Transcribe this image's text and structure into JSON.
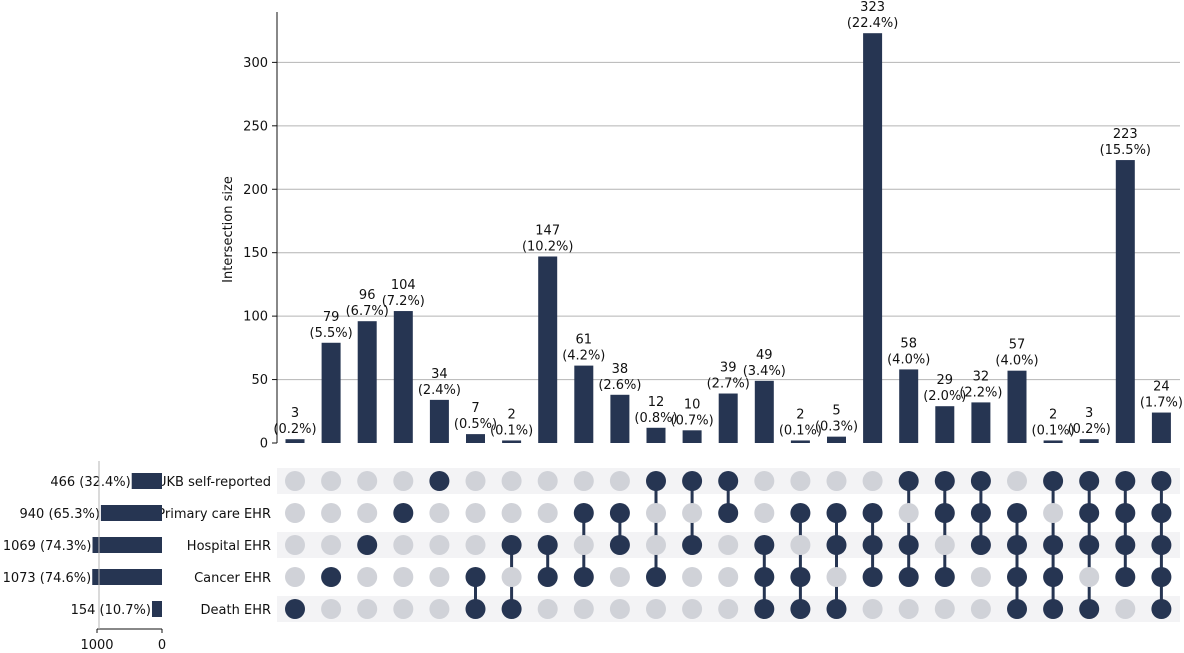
{
  "chart_data": {
    "type": "upset",
    "title": "",
    "ylabel": "Intersection size",
    "y_ticks": [
      0,
      50,
      100,
      150,
      200,
      250,
      300
    ],
    "ylim": [
      0,
      340
    ],
    "grid": true,
    "colors": {
      "bar": "#263552",
      "dot_active": "#263552",
      "dot_inactive": "#d0d2d8",
      "row_shade": "#f3f3f5",
      "grid": "#b4b4b4",
      "axis": "#111111"
    },
    "sets": [
      {
        "name": "UKB self-reported",
        "size": 466,
        "size_label": "466 (32.4%)"
      },
      {
        "name": "Primary care EHR",
        "size": 940,
        "size_label": "940 (65.3%)"
      },
      {
        "name": "Hospital EHR",
        "size": 1069,
        "size_label": "1069 (74.3%)"
      },
      {
        "name": "Cancer EHR",
        "size": 1073,
        "size_label": "1073 (74.6%)"
      },
      {
        "name": "Death EHR",
        "size": 154,
        "size_label": "154 (10.7%)"
      }
    ],
    "set_size_ticks": [
      1000,
      0
    ],
    "set_size_xlim": [
      0,
      1100
    ],
    "intersections": [
      {
        "value": 3,
        "pct": "(0.2%)",
        "members": [
          4
        ]
      },
      {
        "value": 79,
        "pct": "(5.5%)",
        "members": [
          3
        ]
      },
      {
        "value": 96,
        "pct": "(6.7%)",
        "members": [
          2
        ]
      },
      {
        "value": 104,
        "pct": "(7.2%)",
        "members": [
          1
        ]
      },
      {
        "value": 34,
        "pct": "(2.4%)",
        "members": [
          0
        ]
      },
      {
        "value": 7,
        "pct": "(0.5%)",
        "members": [
          3,
          4
        ]
      },
      {
        "value": 2,
        "pct": "(0.1%)",
        "members": [
          2,
          4
        ]
      },
      {
        "value": 147,
        "pct": "(10.2%)",
        "members": [
          2,
          3
        ]
      },
      {
        "value": 61,
        "pct": "(4.2%)",
        "members": [
          1,
          3
        ]
      },
      {
        "value": 38,
        "pct": "(2.6%)",
        "members": [
          1,
          2
        ]
      },
      {
        "value": 12,
        "pct": "(0.8%)",
        "members": [
          0,
          3
        ]
      },
      {
        "value": 10,
        "pct": "(0.7%)",
        "members": [
          0,
          2
        ]
      },
      {
        "value": 39,
        "pct": "(2.7%)",
        "members": [
          0,
          1
        ]
      },
      {
        "value": 49,
        "pct": "(3.4%)",
        "members": [
          2,
          3,
          4
        ]
      },
      {
        "value": 2,
        "pct": "(0.1%)",
        "members": [
          1,
          3,
          4
        ]
      },
      {
        "value": 5,
        "pct": "(0.3%)",
        "members": [
          1,
          2,
          4
        ]
      },
      {
        "value": 323,
        "pct": "(22.4%)",
        "members": [
          1,
          2,
          3
        ]
      },
      {
        "value": 58,
        "pct": "(4.0%)",
        "members": [
          0,
          2,
          3
        ]
      },
      {
        "value": 29,
        "pct": "(2.0%)",
        "members": [
          0,
          1,
          3
        ]
      },
      {
        "value": 32,
        "pct": "(2.2%)",
        "members": [
          0,
          1,
          2
        ]
      },
      {
        "value": 57,
        "pct": "(4.0%)",
        "members": [
          1,
          2,
          3,
          4
        ]
      },
      {
        "value": 2,
        "pct": "(0.1%)",
        "members": [
          0,
          2,
          3,
          4
        ]
      },
      {
        "value": 3,
        "pct": "(0.2%)",
        "members": [
          0,
          1,
          2,
          4
        ]
      },
      {
        "value": 223,
        "pct": "(15.5%)",
        "members": [
          0,
          1,
          2,
          3
        ]
      },
      {
        "value": 24,
        "pct": "(1.7%)",
        "members": [
          0,
          1,
          2,
          3,
          4
        ]
      }
    ]
  }
}
